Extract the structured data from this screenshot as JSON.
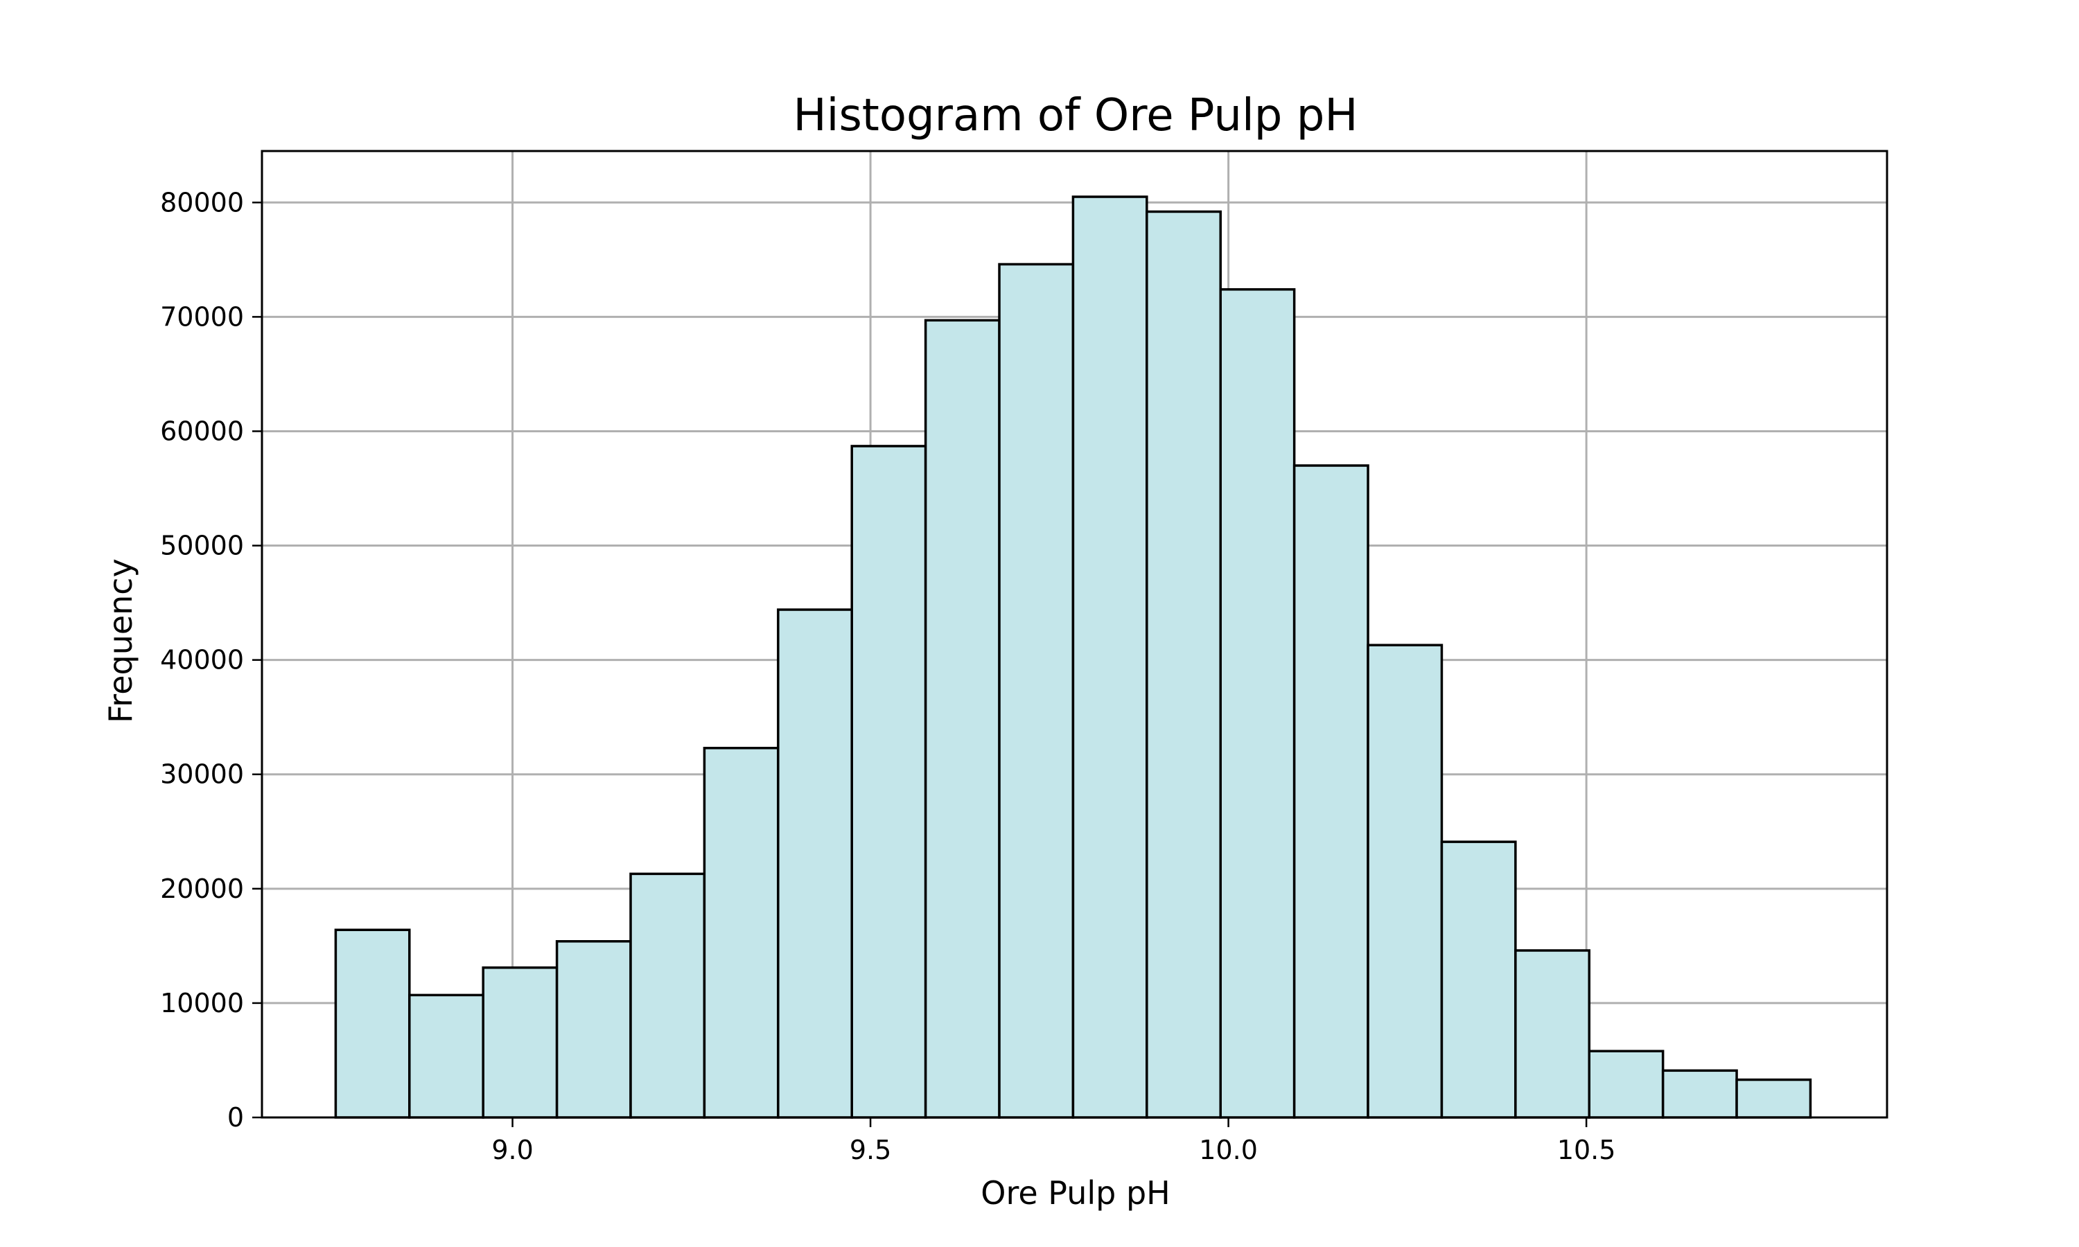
{
  "chart_data": {
    "type": "bar",
    "title": "Histogram of Ore Pulp pH",
    "xlabel": "Ore Pulp pH",
    "ylabel": "Frequency",
    "xlim": [
      8.65,
      10.92
    ],
    "ylim": [
      0,
      84500
    ],
    "grid": true,
    "bar_color": "#c4e6ea",
    "edge_color": "#000000",
    "xticks": [
      {
        "value": 9.0,
        "label": "9.0"
      },
      {
        "value": 9.5,
        "label": "9.5"
      },
      {
        "value": 10.0,
        "label": "10.0"
      },
      {
        "value": 10.5,
        "label": "10.5"
      }
    ],
    "yticks": [
      {
        "value": 0,
        "label": "0"
      },
      {
        "value": 10000,
        "label": "10000"
      },
      {
        "value": 20000,
        "label": "20000"
      },
      {
        "value": 30000,
        "label": "30000"
      },
      {
        "value": 40000,
        "label": "40000"
      },
      {
        "value": 50000,
        "label": "50000"
      },
      {
        "value": 60000,
        "label": "60000"
      },
      {
        "value": 70000,
        "label": "70000"
      },
      {
        "value": 80000,
        "label": "80000"
      }
    ],
    "bin_edges": [
      8.753,
      8.856,
      8.959,
      9.062,
      9.165,
      9.268,
      9.371,
      9.474,
      9.577,
      9.68,
      9.783,
      9.886,
      9.989,
      10.092,
      10.195,
      10.298,
      10.401,
      10.504,
      10.607,
      10.71,
      10.813
    ],
    "values": [
      16400,
      10700,
      13100,
      15400,
      21300,
      32300,
      44400,
      58700,
      69700,
      74600,
      80500,
      79200,
      72400,
      57000,
      41300,
      24100,
      14600,
      5800,
      4100,
      3300
    ]
  }
}
